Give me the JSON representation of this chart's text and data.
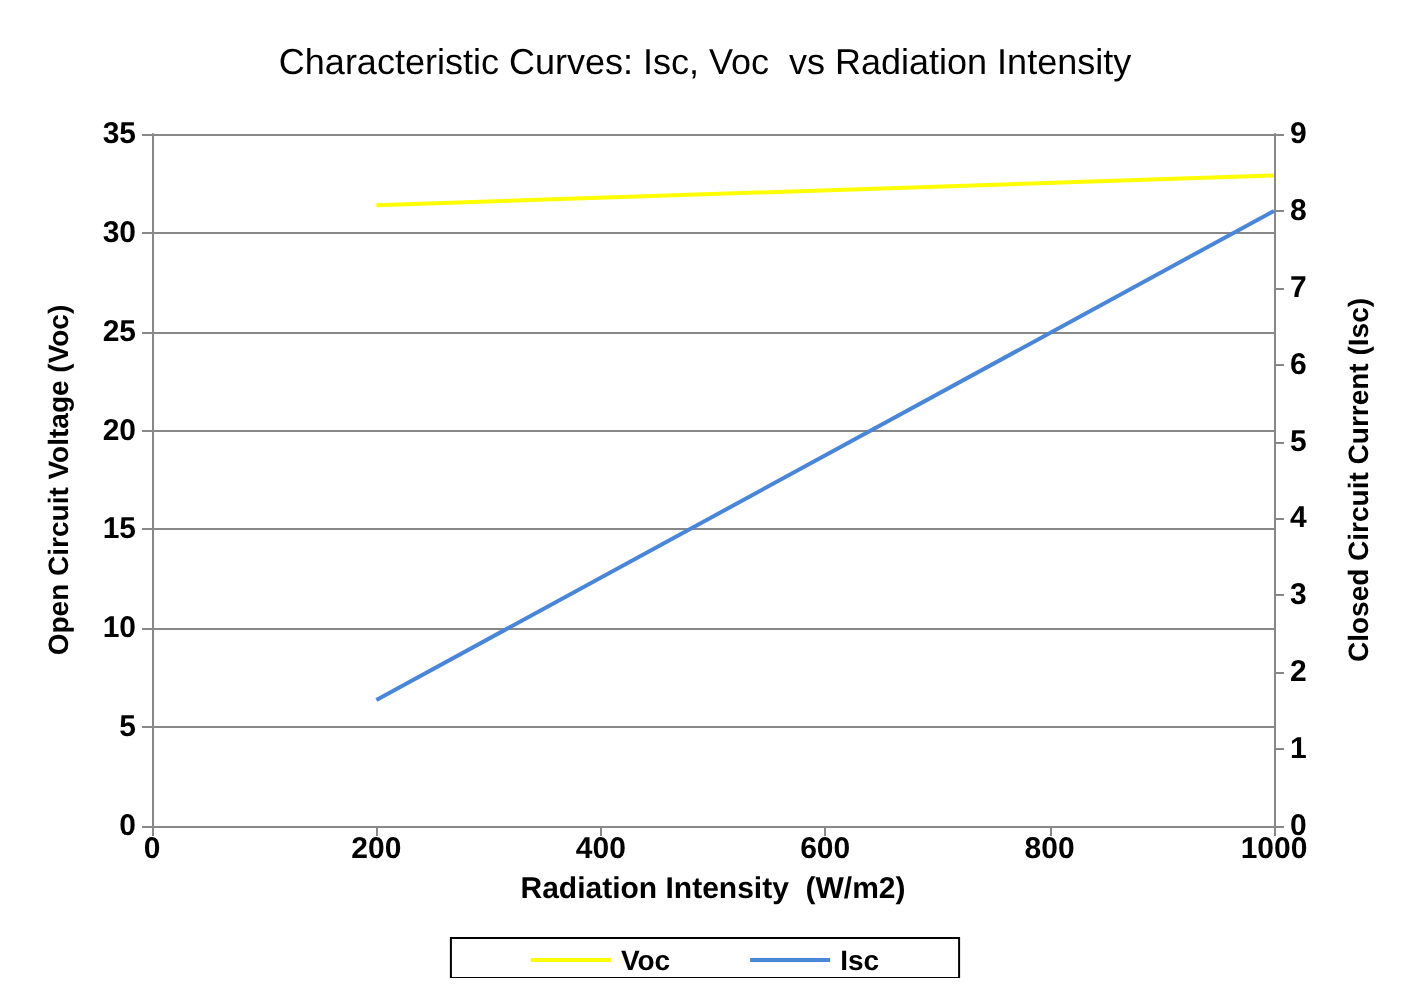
{
  "chart_data": {
    "type": "line",
    "title": "Characteristic Curves: Isc, Voc  vs Radiation Intensity",
    "xlabel": "Radiation Intensity  (W/m2)",
    "ylabel": "Open Circuit Voltage (Voc)",
    "y2label": "Closed Circuit Current (Isc)",
    "x": [
      200,
      1000
    ],
    "series": [
      {
        "name": "Voc",
        "color": "#ffff00",
        "values": [
          31.4,
          32.9
        ]
      },
      {
        "name": "Isc",
        "color": "#4a86d8",
        "values": [
          1.64,
          8.0
        ],
        "axis": "y2"
      }
    ],
    "xlim": [
      0,
      1000
    ],
    "xticks": [
      0,
      200,
      400,
      600,
      800,
      1000
    ],
    "ylim": [
      0,
      35
    ],
    "yticks": [
      0,
      5,
      10,
      15,
      20,
      25,
      30,
      35
    ],
    "y2lim": [
      0,
      9
    ],
    "y2ticks": [
      0,
      1,
      2,
      3,
      4,
      5,
      6,
      7,
      8,
      9
    ],
    "grid": "y",
    "legend": "bottom",
    "marker": "none",
    "line_style": "solid"
  }
}
